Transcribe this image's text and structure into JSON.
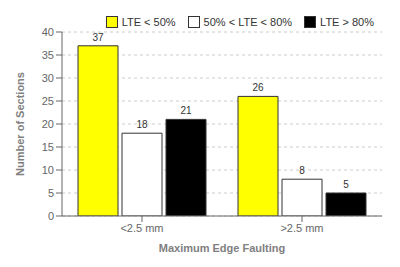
{
  "chart_data": {
    "type": "bar",
    "xlabel": "Maximum Edge Faulting",
    "ylabel": "Number of Sections",
    "categories": [
      "<2.5 mm",
      ">2.5 mm"
    ],
    "series": [
      {
        "name": "LTE < 50%",
        "color": "#ffff00",
        "values": [
          37,
          26
        ]
      },
      {
        "name": "50% < LTE < 80%",
        "color": "#ffffff",
        "values": [
          18,
          8
        ]
      },
      {
        "name": "LTE > 80%",
        "color": "#000000",
        "values": [
          21,
          5
        ]
      }
    ],
    "ylim": [
      0,
      40
    ],
    "yticks": [
      0,
      5,
      10,
      15,
      20,
      25,
      30,
      35,
      40
    ],
    "grid": true,
    "legend": "upper right",
    "data_labels": true
  }
}
